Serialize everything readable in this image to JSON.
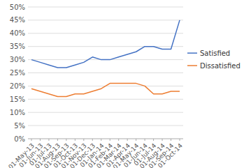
{
  "chart_data": {
    "type": "line",
    "categories": [
      "01-May-13",
      "01-Jun-13",
      "01-Jul-13",
      "01-Aug-13",
      "01-Sep-13",
      "01-Oct-13",
      "01-Nov-13",
      "01-Dec-13",
      "01-Jan-14",
      "01-Feb-14",
      "01-Mar-14",
      "01-Apr-14",
      "01-May-14",
      "01-Jun-14",
      "01-Jul-14",
      "01-Aug-14",
      "01-Sep-14",
      "01-Oct-14"
    ],
    "series": [
      {
        "name": "Satisfied",
        "color": "#4472C4",
        "values": [
          30,
          29,
          28,
          27,
          27,
          28,
          29,
          31,
          30,
          30,
          31,
          32,
          33,
          35,
          35,
          34,
          34,
          45
        ]
      },
      {
        "name": "Dissatisfied",
        "color": "#ED7D31",
        "values": [
          19,
          18,
          17,
          16,
          16,
          17,
          17,
          18,
          19,
          21,
          21,
          21,
          21,
          20,
          17,
          17,
          18,
          18
        ]
      }
    ],
    "ylim": [
      0,
      50
    ],
    "yticks": [
      {
        "value": 0,
        "label": "0%"
      },
      {
        "value": 5,
        "label": "5%"
      },
      {
        "value": 10,
        "label": "10%"
      },
      {
        "value": 15,
        "label": "15%"
      },
      {
        "value": 20,
        "label": "20%"
      },
      {
        "value": 25,
        "label": "25%"
      },
      {
        "value": 30,
        "label": "30%"
      },
      {
        "value": 35,
        "label": "35%"
      },
      {
        "value": 40,
        "label": "40%"
      },
      {
        "value": 45,
        "label": "45%"
      },
      {
        "value": 50,
        "label": "50%"
      }
    ],
    "grid": true,
    "legend": "right"
  }
}
